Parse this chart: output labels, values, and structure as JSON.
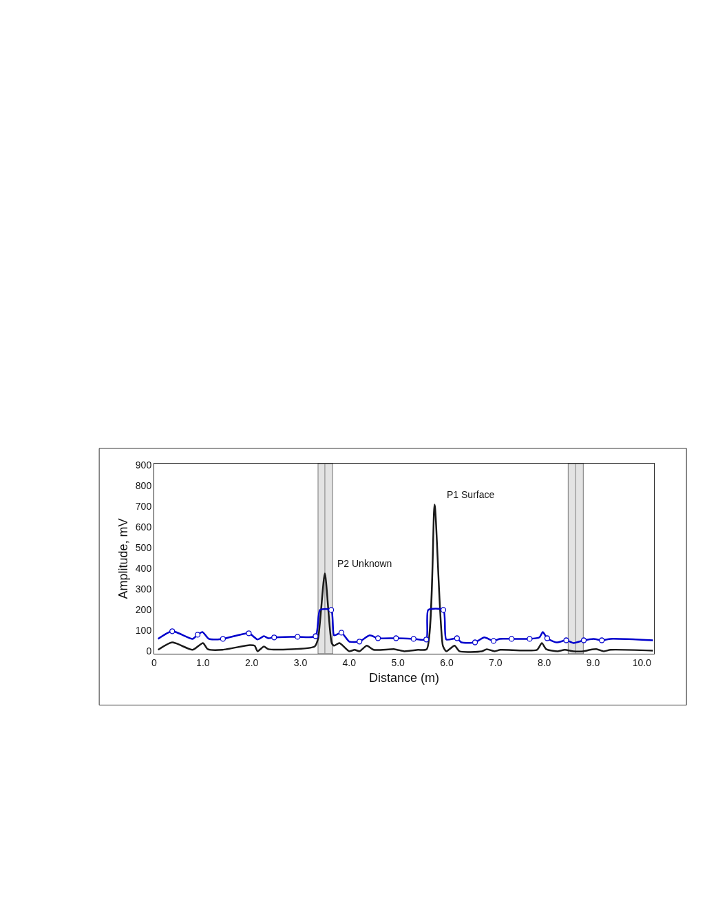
{
  "chart_data": {
    "type": "line",
    "xlabel": "Distance (m)",
    "ylabel": "Amplitude, mV",
    "xlim": [
      0,
      10.25
    ],
    "ylim": [
      -12,
      908
    ],
    "xticks": [
      0,
      {
        "value": 1,
        "label": "1.0"
      },
      {
        "value": 2,
        "label": "2.0"
      },
      {
        "value": 3,
        "label": "3.0"
      },
      {
        "value": 4,
        "label": "4.0"
      },
      {
        "value": 5,
        "label": "5.0"
      },
      {
        "value": 6,
        "label": "6.0"
      },
      {
        "value": 7,
        "label": "7.0"
      },
      {
        "value": 8,
        "label": "8.0"
      },
      {
        "value": 9,
        "label": "9.0"
      },
      {
        "value": 10,
        "label": "10.0"
      }
    ],
    "yticks": [
      0,
      100,
      200,
      300,
      400,
      500,
      600,
      700,
      800,
      900
    ],
    "grid": false,
    "line_style": "solid",
    "series": [
      {
        "color": "#1a1a1a",
        "x": [
          0.08,
          0.37,
          0.79,
          1.0,
          1.1,
          1.4,
          1.96,
          2.06,
          2.12,
          2.25,
          2.34,
          3.29,
          3.36,
          3.5,
          3.64,
          3.69,
          3.8,
          4.0,
          4.11,
          4.21,
          4.36,
          4.5,
          4.93,
          5.13,
          5.41,
          5.59,
          5.75,
          5.92,
          5.99,
          6.16,
          6.26,
          6.72,
          6.82,
          6.98,
          7.1,
          7.85,
          7.95,
          8.04,
          8.28,
          8.42,
          8.6,
          8.8,
          8.94,
          9.08,
          9.22,
          9.36,
          10.23
        ],
        "values": [
          7,
          43,
          7,
          40,
          10,
          7,
          30,
          27,
          0,
          23,
          10,
          23,
          60,
          377,
          40,
          27,
          40,
          0,
          7,
          0,
          27,
          7,
          10,
          0,
          7,
          10,
          710,
          27,
          0,
          27,
          0,
          0,
          10,
          0,
          7,
          7,
          40,
          10,
          0,
          7,
          0,
          0,
          7,
          10,
          0,
          7,
          3
        ]
      },
      {
        "color": "#0000cc",
        "x": [
          0.08,
          0.37,
          0.79,
          0.89,
          0.99,
          1.12,
          1.41,
          1.94,
          2.12,
          2.25,
          2.34,
          2.46,
          2.94,
          3.31,
          3.4,
          3.63,
          3.69,
          3.84,
          4.0,
          4.21,
          4.42,
          4.59,
          4.96,
          5.32,
          5.58,
          5.62,
          5.93,
          5.99,
          6.21,
          6.3,
          6.58,
          6.77,
          6.96,
          7.08,
          7.33,
          7.7,
          7.9,
          7.97,
          8.06,
          8.25,
          8.45,
          8.6,
          8.81,
          9.01,
          9.18,
          9.36,
          10.23
        ],
        "values": [
          60,
          97,
          60,
          80,
          93,
          60,
          60,
          87,
          57,
          73,
          63,
          67,
          70,
          73,
          200,
          200,
          77,
          90,
          47,
          47,
          77,
          63,
          63,
          60,
          57,
          200,
          200,
          57,
          63,
          43,
          43,
          67,
          50,
          60,
          60,
          60,
          67,
          93,
          63,
          43,
          53,
          40,
          53,
          60,
          53,
          60,
          53
        ]
      },
      {
        "type": "scatter",
        "color": "#0000cc",
        "marker": "circle",
        "x": [
          0.37,
          0.89,
          1.41,
          1.94,
          2.46,
          2.94,
          3.31,
          3.63,
          3.84,
          4.21,
          4.59,
          4.96,
          5.32,
          5.58,
          5.93,
          6.21,
          6.58,
          6.96,
          7.33,
          7.7,
          8.06,
          8.45,
          8.81,
          9.18
        ],
        "values": [
          97,
          80,
          60,
          87,
          67,
          70,
          73,
          200,
          90,
          47,
          63,
          63,
          60,
          57,
          200,
          63,
          43,
          50,
          60,
          60,
          63,
          53,
          53,
          53
        ]
      }
    ],
    "bands": [
      {
        "axis": "x",
        "from": 3.36,
        "to": 3.66,
        "label": null,
        "color": "#e3e3e3"
      },
      {
        "axis": "x",
        "from": 8.49,
        "to": 8.8,
        "label": null,
        "color": "#e3e3e3"
      }
    ],
    "ref_lines": [
      {
        "axis": "x",
        "value": 3.5,
        "label": null,
        "color": "#a0a0a0"
      },
      {
        "axis": "x",
        "value": 8.64,
        "label": null,
        "color": "#a0a0a0"
      }
    ],
    "annotations": [
      {
        "text": "P2 Unknown",
        "x": 3.5,
        "y": 377
      },
      {
        "text": "P1 Surface",
        "x": 5.75,
        "y": 710
      }
    ]
  }
}
